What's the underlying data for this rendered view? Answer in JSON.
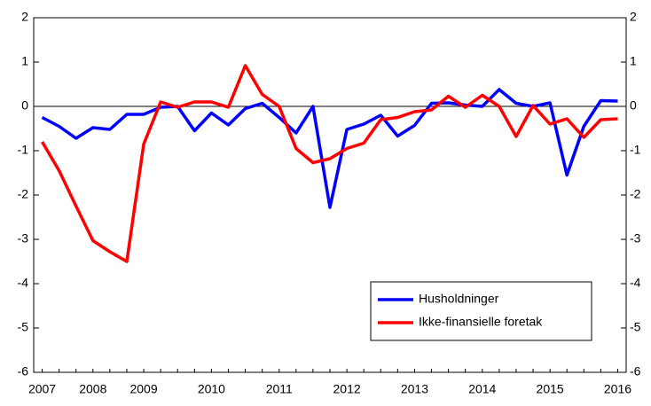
{
  "chart_data": {
    "type": "line",
    "categories": [
      "2007",
      null,
      null,
      "2008",
      null,
      null,
      "2009",
      null,
      null,
      null,
      "2010",
      null,
      null,
      null,
      "2011",
      null,
      null,
      null,
      "2012",
      null,
      null,
      null,
      "2013",
      null,
      null,
      null,
      "2014",
      null,
      null,
      null,
      "2015",
      null,
      null,
      null,
      "2016"
    ],
    "series": [
      {
        "name": "Husholdninger",
        "color": "#0000ff",
        "values": [
          -0.25,
          -0.45,
          -0.72,
          -0.48,
          -0.52,
          -0.18,
          -0.18,
          -0.02,
          0.0,
          -0.55,
          -0.15,
          -0.42,
          -0.05,
          0.07,
          -0.25,
          -0.6,
          0.0,
          -2.28,
          -0.52,
          -0.4,
          -0.2,
          -0.67,
          -0.43,
          0.07,
          0.08,
          0.03,
          0.0,
          0.38,
          0.07,
          0.0,
          0.08,
          -1.55,
          -0.45,
          0.13,
          0.12
        ]
      },
      {
        "name": "Ikke-finansielle foretak",
        "color": "#ff0000",
        "values": [
          -0.8,
          -1.45,
          -2.25,
          -3.03,
          -3.28,
          -3.5,
          -0.85,
          0.1,
          -0.02,
          0.1,
          0.1,
          -0.02,
          0.92,
          0.27,
          0.0,
          -0.95,
          -1.27,
          -1.18,
          -0.95,
          -0.83,
          -0.3,
          -0.25,
          -0.12,
          -0.08,
          0.23,
          -0.02,
          0.25,
          0.0,
          -0.68,
          0.02,
          -0.4,
          -0.28,
          -0.7,
          -0.3,
          -0.28
        ]
      }
    ],
    "ylim": [
      -6,
      2
    ],
    "yticks": [
      -6,
      -5,
      -4,
      -3,
      -2,
      -1,
      0,
      1,
      2
    ],
    "y2lim": [
      -6,
      2
    ],
    "y2ticks": [
      -6,
      -5,
      -4,
      -3,
      -2,
      -1,
      0,
      1,
      2
    ],
    "zero_line": true,
    "legend": "lower right"
  }
}
